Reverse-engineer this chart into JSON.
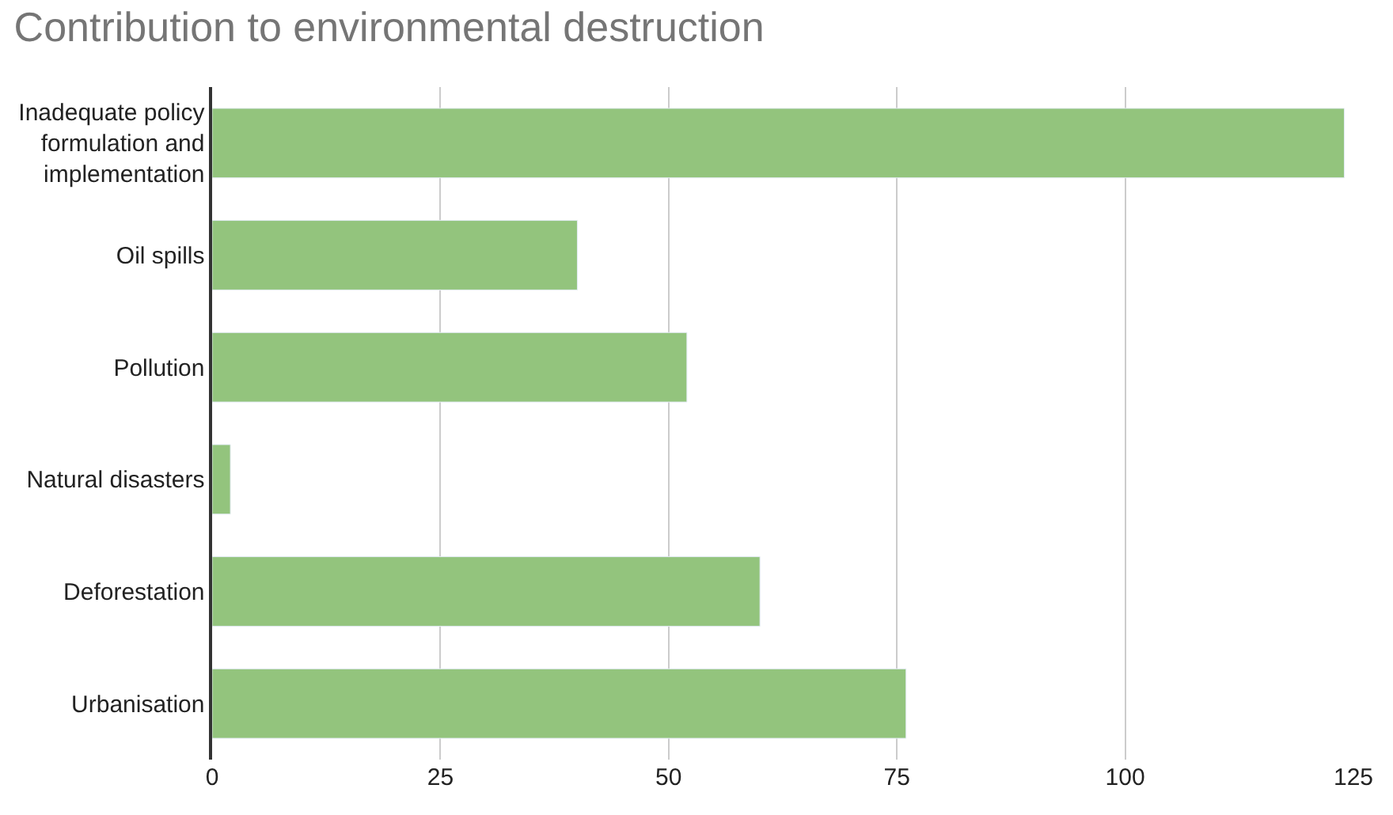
{
  "chart_data": {
    "type": "bar",
    "orientation": "horizontal",
    "title": "Contribution to environmental destruction",
    "categories": [
      "Inadequate policy formulation and implementation",
      "Oil spills",
      "Pollution",
      "Natural disasters",
      "Deforestation",
      "Urbanisation"
    ],
    "values": [
      124,
      40,
      52,
      2,
      60,
      76
    ],
    "color": "#93c47d",
    "xlim": [
      0,
      125
    ],
    "xticks": [
      0,
      25,
      50,
      75,
      100,
      125
    ],
    "grid": "x",
    "legend": false
  }
}
